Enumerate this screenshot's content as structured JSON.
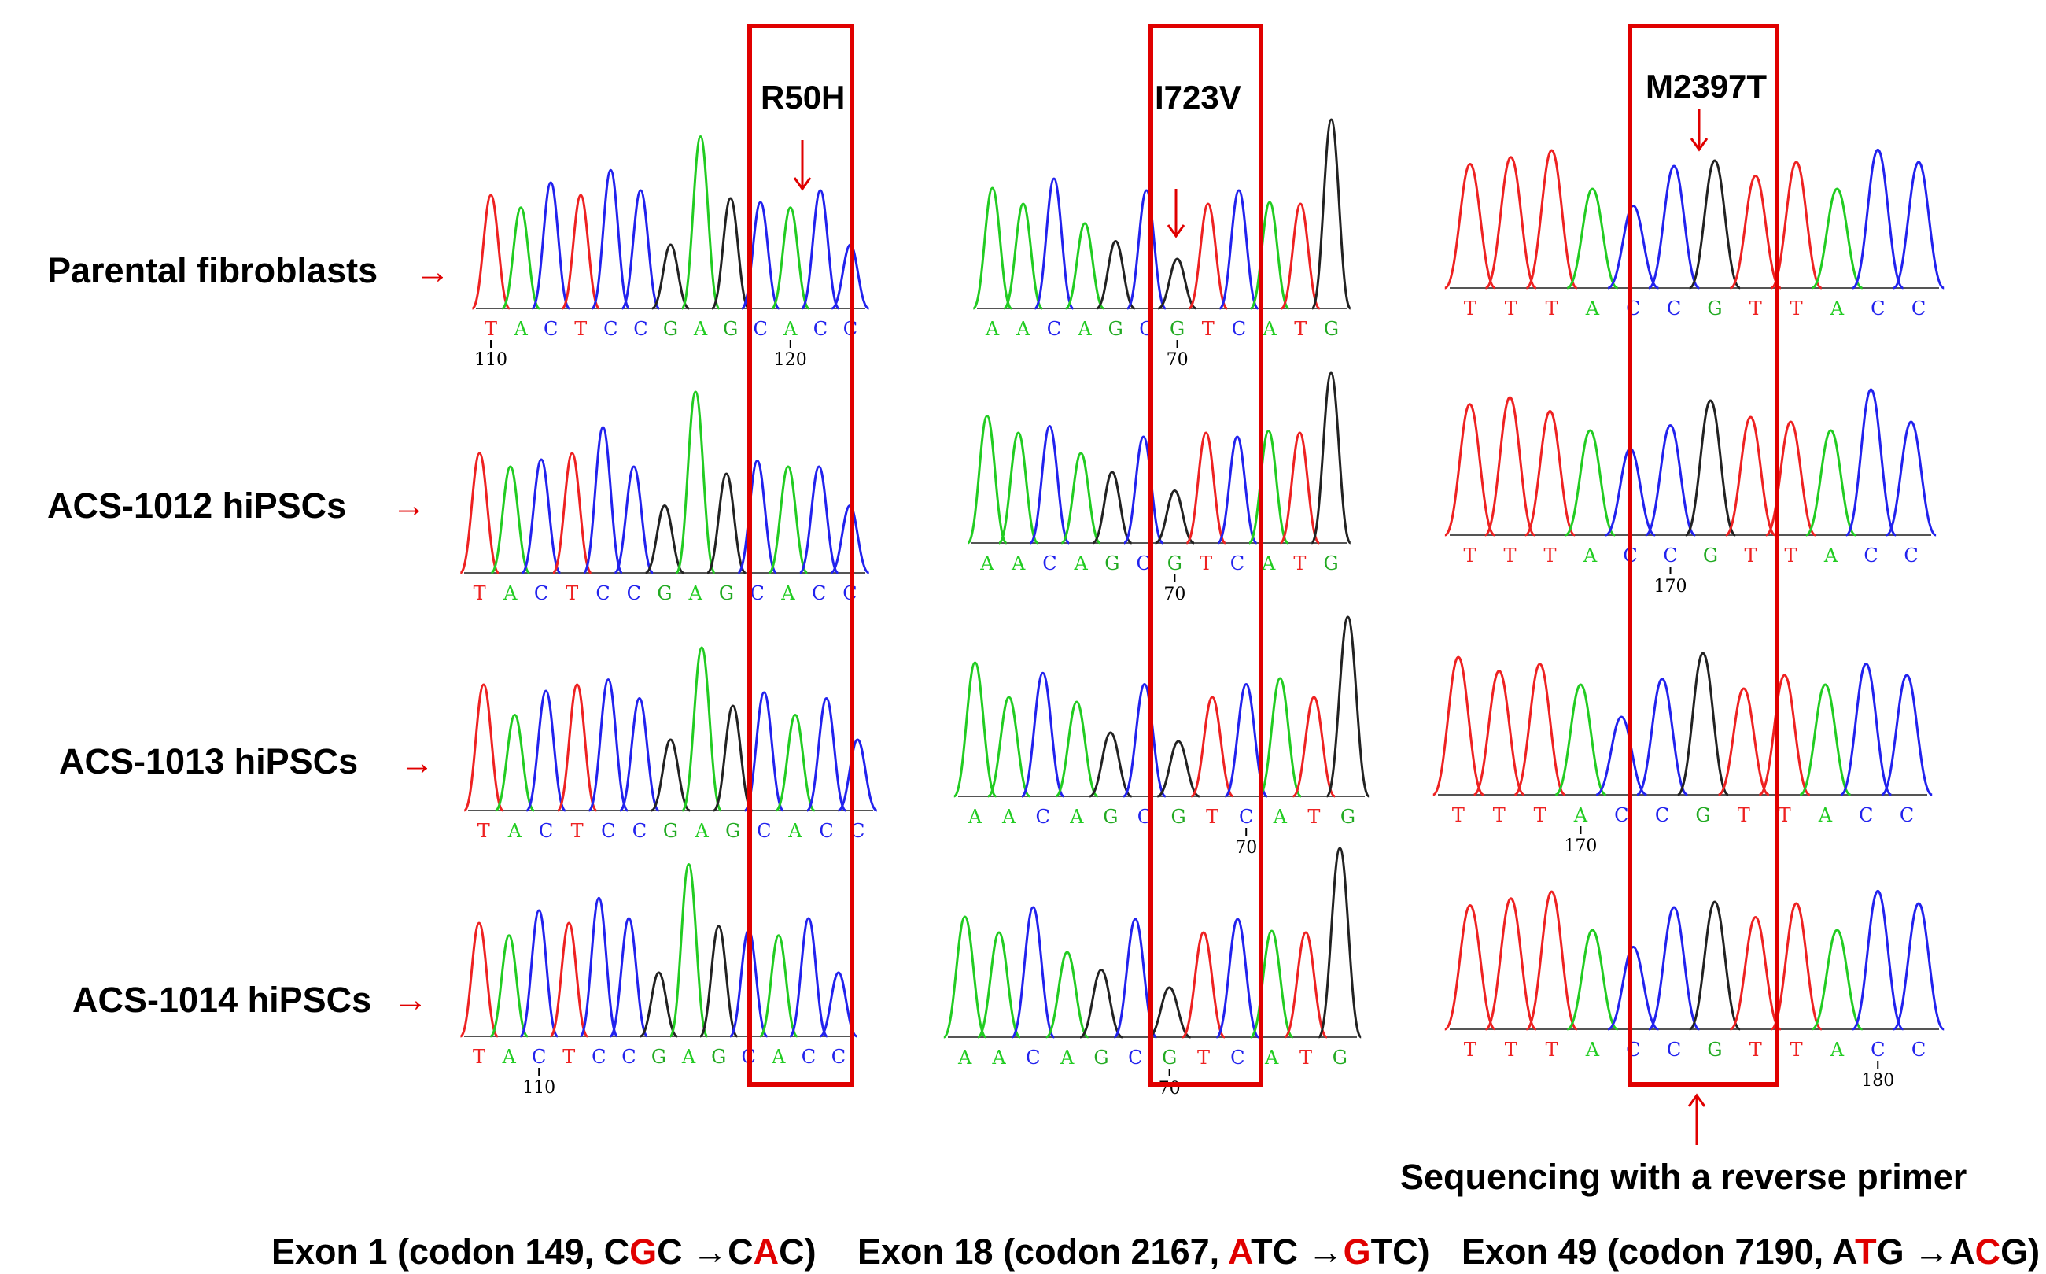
{
  "rows": [
    {
      "label": "Parental fibroblasts"
    },
    {
      "label": "ACS-1012 hiPSCs"
    },
    {
      "label": "ACS-1013 hiPSCs"
    },
    {
      "label": "ACS-1014 hiPSCs"
    }
  ],
  "row_arrow": "→",
  "mutations": [
    {
      "label": "R50H"
    },
    {
      "label": "I723V"
    },
    {
      "label": "M2397T"
    }
  ],
  "reverse_note": "Sequencing with a reverse primer",
  "exon_captions": [
    {
      "pre": "Exon 1 (codon 149, C",
      "hl1": "G",
      "mid": "C →C",
      "hl2": "A",
      "post": "C)"
    },
    {
      "pre": "Exon 18 (codon 2167, ",
      "hl1": "A",
      "mid": "TC →",
      "hl2": "G",
      "post": "TC)"
    },
    {
      "pre": "Exon 49 (codon 7190, A",
      "hl1": "T",
      "mid": "G →A",
      "hl2": "C",
      "post": "G)"
    }
  ],
  "traces": [
    {
      "bases": "TACTCCGAGCACC",
      "positions": [
        {
          "text": "110",
          "index": 0
        },
        {
          "text": "120",
          "index": 10
        }
      ]
    },
    {
      "bases": "AACAGCGTCATG",
      "positions": [
        {
          "text": "70",
          "index": 6
        }
      ]
    },
    {
      "bases": "TTTACCGTTACC",
      "positions": [
        {
          "text": "180",
          "index": 5
        }
      ]
    }
  ],
  "trace_rows": [
    [
      {
        "positions": [
          {
            "text": "110",
            "index": 0
          },
          {
            "text": "120",
            "index": 10
          }
        ]
      },
      {
        "positions": [
          {
            "text": "70",
            "index": 6
          }
        ]
      },
      {
        "positions": []
      }
    ],
    [
      {
        "positions": []
      },
      {
        "positions": [
          {
            "text": "70",
            "index": 6
          }
        ]
      },
      {
        "positions": [
          {
            "text": "170",
            "index": 5
          }
        ]
      }
    ],
    [
      {
        "positions": []
      },
      {
        "positions": [
          {
            "text": "70",
            "index": 8
          }
        ]
      },
      {
        "positions": [
          {
            "text": "170",
            "index": 3
          }
        ]
      }
    ],
    [
      {
        "positions": [
          {
            "text": "110",
            "index": 2
          }
        ]
      },
      {
        "positions": [
          {
            "text": "70",
            "index": 6
          }
        ]
      },
      {
        "positions": [
          {
            "text": "180",
            "index": 10
          }
        ]
      }
    ]
  ],
  "colors": {
    "A": "#22cc22",
    "C": "#2222ee",
    "G": "#222222",
    "T": "#ee2222",
    "box": "#e00000",
    "arrow": "#e00000",
    "gg_label": "#22aa22"
  }
}
